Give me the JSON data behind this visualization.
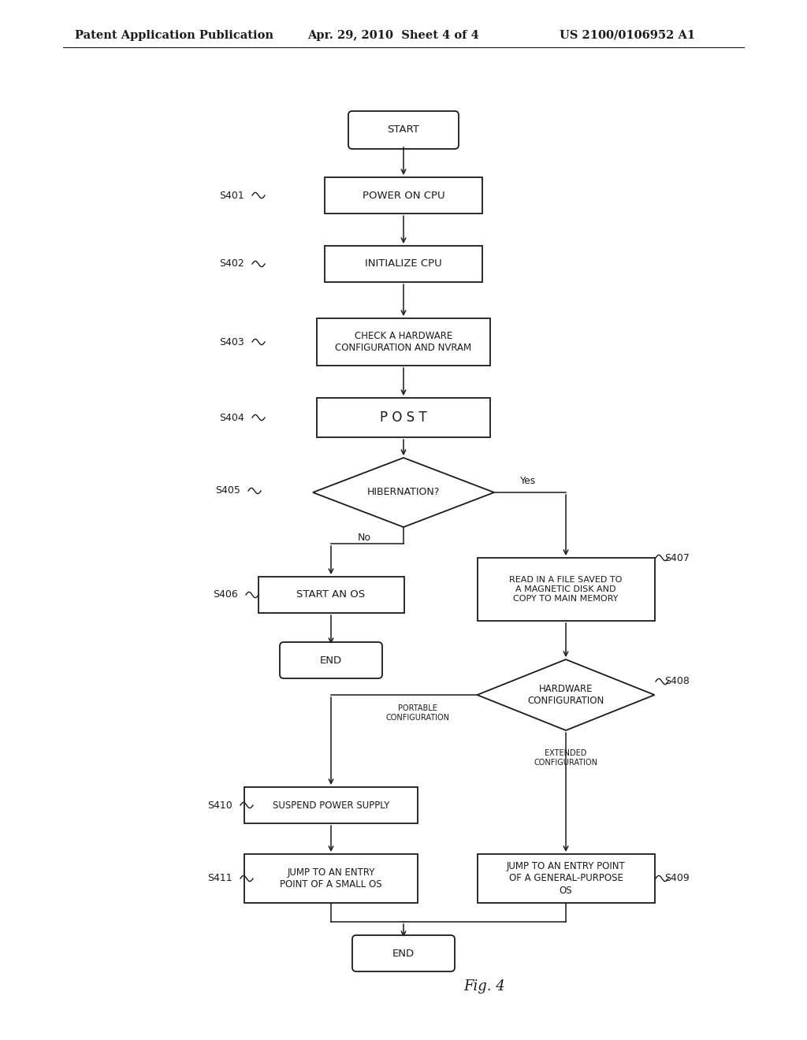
{
  "bg_color": "#ffffff",
  "header_left": "Patent Application Publication",
  "header_mid": "Apr. 29, 2010  Sheet 4 of 4",
  "header_right": "US 2100/0106952 A1",
  "fig_label": "Fig. 4",
  "text_color": "#1a1a1a",
  "box_edge_color": "#1a1a1a",
  "arrow_color": "#1a1a1a",
  "font_size_node": 9,
  "font_size_step": 9,
  "font_size_header": 10.5
}
